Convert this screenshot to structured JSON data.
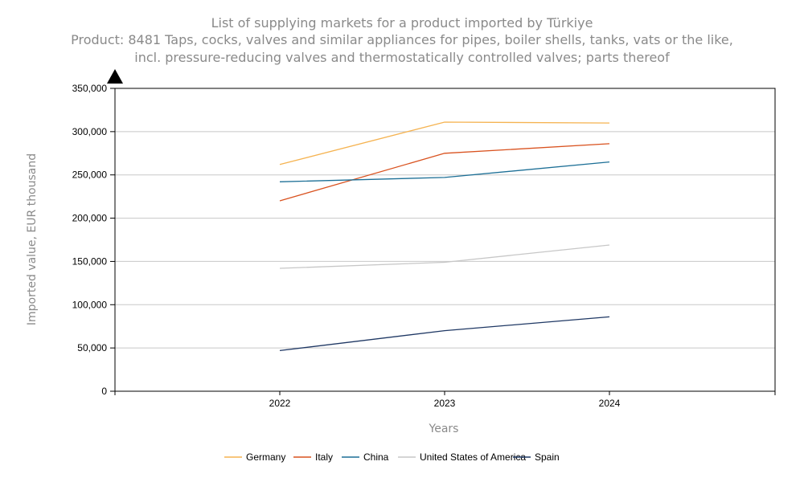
{
  "chart_data": {
    "type": "line",
    "title_lines": [
      "List of supplying markets for a product imported by Türkiye",
      "Product: 8481 Taps, cocks, valves and similar appliances for pipes, boiler shells, tanks, vats or the like,",
      "incl. pressure-reducing valves and thermostatically controlled valves; parts thereof"
    ],
    "xlabel": "Years",
    "ylabel": "Imported value, EUR thousand",
    "categories": [
      "2022",
      "2023",
      "2024"
    ],
    "y_ticks": [
      "0",
      "50,000",
      "100,000",
      "150,000",
      "200,000",
      "250,000",
      "300,000",
      "350,000"
    ],
    "ylim": [
      0,
      350000
    ],
    "grid": true,
    "legend_position": "bottom",
    "series": [
      {
        "name": "Germany",
        "color": "#f5b351",
        "values": [
          262000,
          311000,
          310000
        ]
      },
      {
        "name": "Italy",
        "color": "#d9521f",
        "values": [
          220000,
          275000,
          286000
        ]
      },
      {
        "name": "China",
        "color": "#1c6f96",
        "values": [
          242000,
          247000,
          265000
        ]
      },
      {
        "name": "United States of America",
        "color": "#c7c7c7",
        "values": [
          142000,
          149000,
          169000
        ]
      },
      {
        "name": "Spain",
        "color": "#1f3864",
        "values": [
          47000,
          70000,
          86000
        ]
      }
    ]
  }
}
